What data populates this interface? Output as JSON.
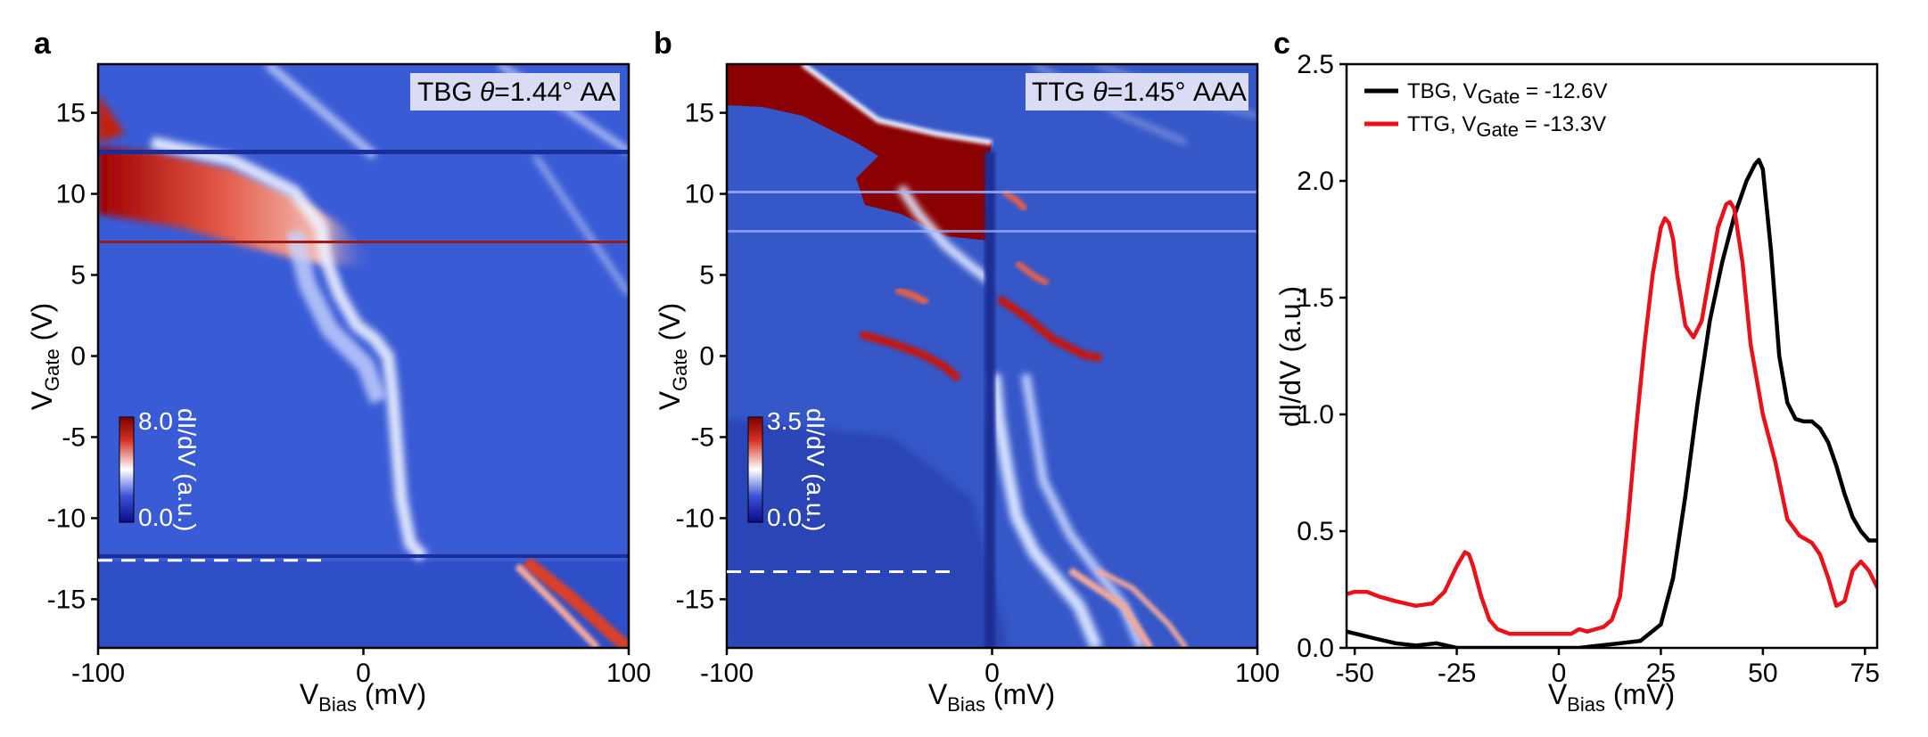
{
  "panel_letters": [
    "a",
    "b",
    "c"
  ],
  "chart_data": [
    {
      "type": "heatmap",
      "panel": "a",
      "annotation": {
        "pre": "TBG ",
        "theta": "θ",
        "post": "=1.44° AA"
      },
      "xlabel": {
        "main": "V",
        "sub": "Bias",
        "unit": " (mV)"
      },
      "ylabel": {
        "main": "V",
        "sub": "Gate",
        "unit": " (V)"
      },
      "xlim": [
        -100,
        100
      ],
      "ylim": [
        -18,
        18
      ],
      "xticks": [
        -100,
        0,
        100
      ],
      "xtick_labels": [
        "-100",
        "0",
        "100"
      ],
      "yticks": [
        15,
        10,
        5,
        0,
        -5,
        -10,
        -15
      ],
      "ytick_labels": [
        "15",
        "10",
        "5",
        "0",
        "-5",
        "-10",
        "-15"
      ],
      "colorbar": {
        "min": 0.0,
        "max": 8.0,
        "min_label": "0.0",
        "max_label": "8.0",
        "label": "dI/dV (a.u.)",
        "colors": [
          "#0b0b8c",
          "#3a53d8",
          "#ffffff",
          "#d43325",
          "#7a0000"
        ]
      },
      "dashed_line": {
        "v_gate": -12.6,
        "x_from": -100,
        "x_to": -15
      },
      "features": {
        "background_color": "#3a5bd6",
        "bright_band_centers": [
          [
            -95,
            14
          ],
          [
            -80,
            11
          ],
          [
            -60,
            9
          ],
          [
            -40,
            7
          ],
          [
            -25,
            5
          ],
          [
            -20,
            2
          ],
          [
            -5,
            0
          ],
          [
            5,
            -2
          ],
          [
            8,
            -6
          ],
          [
            10,
            -10
          ],
          [
            15,
            -12.6
          ]
        ],
        "horizontal_jumps_v_gate": [
          12.5,
          6.8,
          -12.4
        ]
      }
    },
    {
      "type": "heatmap",
      "panel": "b",
      "annotation": {
        "pre": "TTG ",
        "theta": "θ",
        "post": "=1.45° AAA"
      },
      "xlabel": {
        "main": "V",
        "sub": "Bias",
        "unit": " (mV)"
      },
      "ylabel": {
        "main": "V",
        "sub": "Gate",
        "unit": " (V)"
      },
      "xlim": [
        -100,
        100
      ],
      "ylim": [
        -18,
        18
      ],
      "xticks": [
        -100,
        0,
        100
      ],
      "xtick_labels": [
        "-100",
        "0",
        "100"
      ],
      "yticks": [
        15,
        10,
        5,
        0,
        -5,
        -10,
        -15
      ],
      "ytick_labels": [
        "15",
        "10",
        "5",
        "0",
        "-5",
        "-10",
        "-15"
      ],
      "colorbar": {
        "min": 0.0,
        "max": 3.5,
        "min_label": "0.0",
        "max_label": "3.5",
        "label": "dI/dV (a.u.)",
        "colors": [
          "#0b0b8c",
          "#3a53d8",
          "#ffffff",
          "#d43325",
          "#7a0000"
        ]
      },
      "dashed_line": {
        "v_gate": -13.3,
        "x_from": -100,
        "x_to": -15
      },
      "features": {
        "background_color": "#3557c8",
        "saturated_region_vertices": [
          [
            -100,
            18
          ],
          [
            -85,
            18
          ],
          [
            -40,
            14.5
          ],
          [
            0,
            13
          ],
          [
            -5,
            9
          ],
          [
            -30,
            9
          ],
          [
            -50,
            13
          ],
          [
            -100,
            16
          ]
        ],
        "dark_vertical_at_bias": 0
      }
    },
    {
      "type": "line",
      "panel": "c",
      "xlabel": {
        "main": "V",
        "sub": "Bias",
        "unit": " (mV)"
      },
      "ylabel": "dI/dV (a.u.)",
      "xlim": [
        -52,
        78
      ],
      "ylim": [
        0,
        2.5
      ],
      "xticks": [
        -50,
        -25,
        0,
        25,
        50,
        75
      ],
      "xtick_labels": [
        "-50",
        "-25",
        "0",
        "25",
        "50",
        "75"
      ],
      "yticks": [
        0.0,
        0.5,
        1.0,
        1.5,
        2.0,
        2.5
      ],
      "ytick_labels": [
        "0.0",
        "0.5",
        "1.0",
        "1.5",
        "2.0",
        "2.5"
      ],
      "legend_position": "top-left",
      "series": [
        {
          "name": "TBG, V_Gate = -12.6V",
          "legend": {
            "pre": "TBG, V",
            "sub": "Gate",
            "post": " = -12.6V"
          },
          "color": "#000000",
          "x": [
            -52,
            -45,
            -40,
            -35,
            -30,
            -25,
            -20,
            -15,
            -10,
            -5,
            0,
            5,
            10,
            15,
            20,
            25,
            28,
            31,
            34,
            37,
            40,
            43,
            46,
            48,
            49,
            50,
            52,
            54,
            56,
            58,
            60,
            62,
            64,
            66,
            68,
            70,
            72,
            74,
            76,
            78
          ],
          "y": [
            0.07,
            0.04,
            0.02,
            0.01,
            0.02,
            0.0,
            0.0,
            0.0,
            0.0,
            0.0,
            0.0,
            0.0,
            0.01,
            0.02,
            0.03,
            0.1,
            0.3,
            0.65,
            1.05,
            1.4,
            1.65,
            1.85,
            2.0,
            2.07,
            2.09,
            2.05,
            1.7,
            1.25,
            1.05,
            0.98,
            0.97,
            0.97,
            0.94,
            0.88,
            0.78,
            0.66,
            0.56,
            0.5,
            0.46,
            0.46
          ]
        },
        {
          "name": "TTG, V_Gate = -13.3V",
          "legend": {
            "pre": "TTG, V",
            "sub": "Gate",
            "post": " = -13.3V"
          },
          "color": "#e8131a",
          "x": [
            -52,
            -50,
            -47,
            -44,
            -40,
            -35,
            -31,
            -28,
            -25,
            -23,
            -22,
            -21,
            -19,
            -17,
            -15,
            -12,
            -9,
            -6,
            -3,
            0,
            3,
            5,
            7,
            9,
            11,
            13,
            15,
            17,
            19,
            21,
            23,
            25,
            26,
            27,
            28,
            29,
            31,
            33,
            35,
            37,
            39,
            41,
            42,
            43,
            45,
            47,
            50,
            53,
            56,
            59,
            62,
            64,
            66,
            68,
            70,
            72,
            74,
            76,
            78
          ],
          "y": [
            0.23,
            0.24,
            0.24,
            0.22,
            0.2,
            0.18,
            0.19,
            0.24,
            0.35,
            0.41,
            0.4,
            0.35,
            0.22,
            0.12,
            0.08,
            0.06,
            0.06,
            0.06,
            0.06,
            0.06,
            0.06,
            0.08,
            0.07,
            0.08,
            0.09,
            0.12,
            0.22,
            0.55,
            0.95,
            1.3,
            1.6,
            1.8,
            1.84,
            1.82,
            1.75,
            1.6,
            1.38,
            1.33,
            1.4,
            1.6,
            1.8,
            1.9,
            1.91,
            1.88,
            1.65,
            1.3,
            1.0,
            0.8,
            0.55,
            0.48,
            0.45,
            0.4,
            0.3,
            0.18,
            0.2,
            0.33,
            0.37,
            0.33,
            0.26
          ]
        }
      ]
    }
  ]
}
